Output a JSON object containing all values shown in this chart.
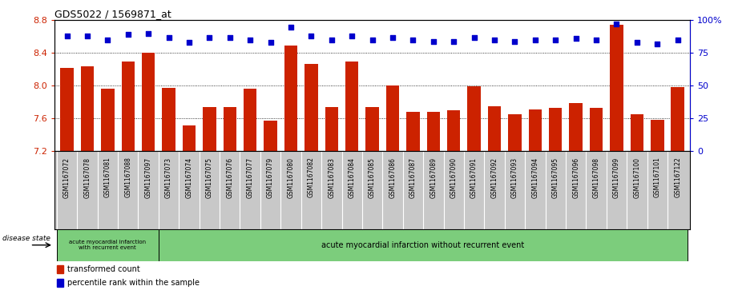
{
  "title": "GDS5022 / 1569871_at",
  "samples": [
    "GSM1167072",
    "GSM1167078",
    "GSM1167081",
    "GSM1167088",
    "GSM1167097",
    "GSM1167073",
    "GSM1167074",
    "GSM1167075",
    "GSM1167076",
    "GSM1167077",
    "GSM1167079",
    "GSM1167080",
    "GSM1167082",
    "GSM1167083",
    "GSM1167084",
    "GSM1167085",
    "GSM1167086",
    "GSM1167087",
    "GSM1167089",
    "GSM1167090",
    "GSM1167091",
    "GSM1167092",
    "GSM1167093",
    "GSM1167094",
    "GSM1167095",
    "GSM1167096",
    "GSM1167098",
    "GSM1167099",
    "GSM1167100",
    "GSM1167101",
    "GSM1167122"
  ],
  "bar_values": [
    8.22,
    8.24,
    7.96,
    8.29,
    8.4,
    7.97,
    7.51,
    7.74,
    7.74,
    7.96,
    7.57,
    8.49,
    8.27,
    7.74,
    8.29,
    7.74,
    8.0,
    7.68,
    7.68,
    7.7,
    7.99,
    7.75,
    7.65,
    7.71,
    7.73,
    7.79,
    7.73,
    8.75,
    7.65,
    7.58,
    7.98
  ],
  "percentile_values": [
    88,
    88,
    85,
    89,
    90,
    87,
    83,
    87,
    87,
    85,
    83,
    95,
    88,
    85,
    88,
    85,
    87,
    85,
    84,
    84,
    87,
    85,
    84,
    85,
    85,
    86,
    85,
    97,
    83,
    82,
    85
  ],
  "ylim_left": [
    7.2,
    8.8
  ],
  "ylim_right": [
    0,
    100
  ],
  "yticks_left": [
    7.2,
    7.6,
    8.0,
    8.4,
    8.8
  ],
  "yticks_right": [
    0,
    25,
    50,
    75,
    100
  ],
  "bar_color": "#cc2200",
  "dot_color": "#0000cc",
  "group1_count": 5,
  "group1_label": "acute myocardial infarction\nwith recurrent event",
  "group2_label": "acute myocardial infarction without recurrent event",
  "group_bg": "#7ccd7c",
  "disease_state_label": "disease state",
  "legend1": "transformed count",
  "legend2": "percentile rank within the sample",
  "left_axis_color": "#cc2200",
  "right_axis_color": "#0000cc",
  "xtick_bg": "#c8c8c8",
  "plot_bg": "#ffffff"
}
